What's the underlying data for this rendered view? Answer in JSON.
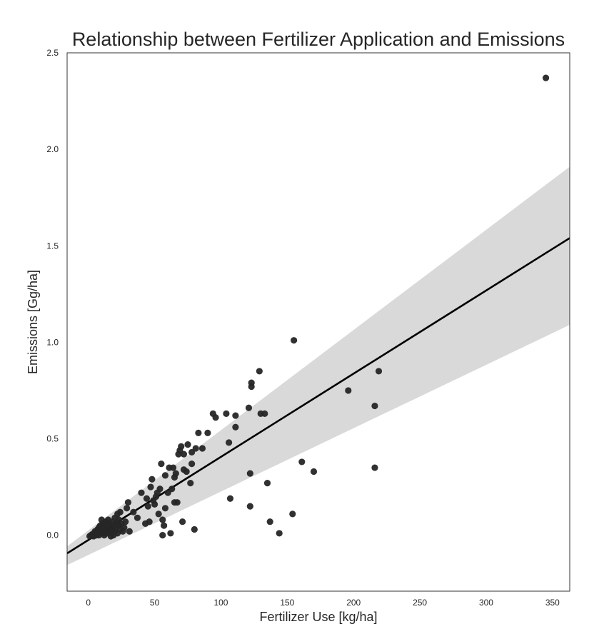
{
  "chart_data": {
    "type": "scatter",
    "title": "Relationship between Fertilizer Application and Emissions",
    "xlabel": "Fertilizer Use [kg/ha]",
    "ylabel": "Emissions [Gg/ha]",
    "xlim": [
      -16,
      363
    ],
    "ylim": [
      -0.29,
      2.5
    ],
    "xticks": [
      0,
      50,
      100,
      150,
      200,
      250,
      300,
      350
    ],
    "yticks": [
      0.0,
      0.5,
      1.0,
      1.5,
      2.0,
      2.5
    ],
    "xtick_labels": [
      "0",
      "50",
      "100",
      "150",
      "200",
      "250",
      "300",
      "350"
    ],
    "ytick_labels": [
      "0.0",
      "0.5",
      "1.0",
      "1.5",
      "2.0",
      "2.5"
    ],
    "grid": false,
    "colors": {
      "points": "#262626",
      "line": "#000000",
      "band": "#d9d9d9",
      "frame": "#333333"
    },
    "regression": {
      "x": [
        -16,
        363
      ],
      "y": [
        -0.094,
        1.54
      ],
      "ci_lower": [
        -0.155,
        1.09
      ],
      "ci_upper": [
        -0.058,
        1.91
      ]
    },
    "points": [
      {
        "x": 1,
        "y": -0.005
      },
      {
        "x": 2,
        "y": 0.0
      },
      {
        "x": 3,
        "y": 0.005
      },
      {
        "x": 4,
        "y": -0.005
      },
      {
        "x": 5,
        "y": 0.01
      },
      {
        "x": 5,
        "y": 0.02
      },
      {
        "x": 6,
        "y": 0.0
      },
      {
        "x": 7,
        "y": 0.03
      },
      {
        "x": 7,
        "y": 0.01
      },
      {
        "x": 8,
        "y": 0.04
      },
      {
        "x": 8,
        "y": 0.0
      },
      {
        "x": 9,
        "y": 0.02
      },
      {
        "x": 9,
        "y": 0.05
      },
      {
        "x": 10,
        "y": 0.03
      },
      {
        "x": 10,
        "y": 0.08
      },
      {
        "x": 11,
        "y": 0.01
      },
      {
        "x": 11,
        "y": 0.06
      },
      {
        "x": 12,
        "y": 0.04
      },
      {
        "x": 12,
        "y": 0.0
      },
      {
        "x": 13,
        "y": 0.02
      },
      {
        "x": 13,
        "y": 0.07
      },
      {
        "x": 14,
        "y": 0.05
      },
      {
        "x": 14,
        "y": 0.03
      },
      {
        "x": 15,
        "y": 0.01
      },
      {
        "x": 15,
        "y": 0.08
      },
      {
        "x": 16,
        "y": 0.04
      },
      {
        "x": 16,
        "y": 0.06
      },
      {
        "x": 17,
        "y": 0.02
      },
      {
        "x": 17,
        "y": -0.005
      },
      {
        "x": 18,
        "y": 0.07
      },
      {
        "x": 18,
        "y": 0.03
      },
      {
        "x": 19,
        "y": 0.05
      },
      {
        "x": 19,
        "y": 0.0
      },
      {
        "x": 20,
        "y": 0.09
      },
      {
        "x": 20,
        "y": 0.02
      },
      {
        "x": 21,
        "y": 0.06
      },
      {
        "x": 21,
        "y": 0.04
      },
      {
        "x": 22,
        "y": 0.11
      },
      {
        "x": 22,
        "y": 0.01
      },
      {
        "x": 23,
        "y": 0.08
      },
      {
        "x": 23,
        "y": 0.05
      },
      {
        "x": 24,
        "y": 0.12
      },
      {
        "x": 24,
        "y": 0.03
      },
      {
        "x": 25,
        "y": 0.06
      },
      {
        "x": 26,
        "y": 0.02
      },
      {
        "x": 27,
        "y": 0.04
      },
      {
        "x": 28,
        "y": 0.07
      },
      {
        "x": 29,
        "y": 0.14
      },
      {
        "x": 30,
        "y": 0.17
      },
      {
        "x": 31,
        "y": 0.02
      },
      {
        "x": 34,
        "y": 0.12
      },
      {
        "x": 37,
        "y": 0.09
      },
      {
        "x": 40,
        "y": 0.22
      },
      {
        "x": 43,
        "y": 0.06
      },
      {
        "x": 44,
        "y": 0.19
      },
      {
        "x": 45,
        "y": 0.15
      },
      {
        "x": 46,
        "y": 0.07
      },
      {
        "x": 47,
        "y": 0.25
      },
      {
        "x": 48,
        "y": 0.29
      },
      {
        "x": 49,
        "y": 0.18
      },
      {
        "x": 50,
        "y": 0.16
      },
      {
        "x": 51,
        "y": 0.2
      },
      {
        "x": 52,
        "y": 0.22
      },
      {
        "x": 53,
        "y": 0.11
      },
      {
        "x": 54,
        "y": 0.24
      },
      {
        "x": 55,
        "y": 0.37
      },
      {
        "x": 56,
        "y": 0.0
      },
      {
        "x": 56,
        "y": 0.08
      },
      {
        "x": 57,
        "y": 0.05
      },
      {
        "x": 58,
        "y": 0.31
      },
      {
        "x": 58,
        "y": 0.14
      },
      {
        "x": 60,
        "y": 0.22
      },
      {
        "x": 61,
        "y": 0.35
      },
      {
        "x": 62,
        "y": 0.01
      },
      {
        "x": 63,
        "y": 0.24
      },
      {
        "x": 64,
        "y": 0.35
      },
      {
        "x": 65,
        "y": 0.3
      },
      {
        "x": 65,
        "y": 0.17
      },
      {
        "x": 66,
        "y": 0.32
      },
      {
        "x": 67,
        "y": 0.17
      },
      {
        "x": 68,
        "y": 0.42
      },
      {
        "x": 69,
        "y": 0.44
      },
      {
        "x": 70,
        "y": 0.46
      },
      {
        "x": 71,
        "y": 0.07
      },
      {
        "x": 72,
        "y": 0.34
      },
      {
        "x": 72,
        "y": 0.42
      },
      {
        "x": 74,
        "y": 0.33
      },
      {
        "x": 75,
        "y": 0.47
      },
      {
        "x": 77,
        "y": 0.27
      },
      {
        "x": 78,
        "y": 0.37
      },
      {
        "x": 78,
        "y": 0.43
      },
      {
        "x": 80,
        "y": 0.03
      },
      {
        "x": 81,
        "y": 0.45
      },
      {
        "x": 83,
        "y": 0.53
      },
      {
        "x": 86,
        "y": 0.45
      },
      {
        "x": 90,
        "y": 0.53
      },
      {
        "x": 94,
        "y": 0.63
      },
      {
        "x": 96,
        "y": 0.61
      },
      {
        "x": 104,
        "y": 0.63
      },
      {
        "x": 106,
        "y": 0.48
      },
      {
        "x": 107,
        "y": 0.19
      },
      {
        "x": 111,
        "y": 0.56
      },
      {
        "x": 111,
        "y": 0.62
      },
      {
        "x": 121,
        "y": 0.66
      },
      {
        "x": 122,
        "y": 0.32
      },
      {
        "x": 122,
        "y": 0.15
      },
      {
        "x": 123,
        "y": 0.77
      },
      {
        "x": 123,
        "y": 0.79
      },
      {
        "x": 129,
        "y": 0.85
      },
      {
        "x": 130,
        "y": 0.63
      },
      {
        "x": 133,
        "y": 0.63
      },
      {
        "x": 135,
        "y": 0.27
      },
      {
        "x": 137,
        "y": 0.07
      },
      {
        "x": 144,
        "y": 0.01
      },
      {
        "x": 154,
        "y": 0.11
      },
      {
        "x": 155,
        "y": 1.01
      },
      {
        "x": 161,
        "y": 0.38
      },
      {
        "x": 170,
        "y": 0.33
      },
      {
        "x": 196,
        "y": 0.75
      },
      {
        "x": 216,
        "y": 0.67
      },
      {
        "x": 216,
        "y": 0.35
      },
      {
        "x": 219,
        "y": 0.85
      },
      {
        "x": 345,
        "y": 2.37
      }
    ]
  }
}
